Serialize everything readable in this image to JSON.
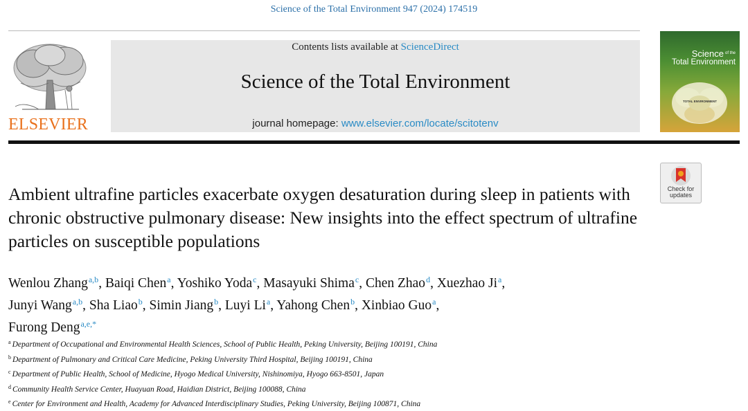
{
  "header": {
    "citation": "Science of the Total Environment 947 (2024) 174519",
    "contents_prefix": "Contents lists available at",
    "contents_link": "ScienceDirect",
    "journal_title": "Science of the Total Environment",
    "homepage_prefix": "journal homepage:",
    "homepage_link": "www.elsevier.com/locate/scitotenv",
    "publisher": "ELSEVIER"
  },
  "cover": {
    "title_line1": "Science",
    "title_sup": "of the",
    "title_line2": "Total Environment",
    "inner_label": "TOTAL ENVIRONMENT"
  },
  "check_updates": {
    "line1": "Check for",
    "line2": "updates"
  },
  "article": {
    "title": "Ambient ultrafine particles exacerbate oxygen desaturation during sleep in patients with chronic obstructive pulmonary disease: New insights into the effect spectrum of ultrafine particles on susceptible populations",
    "authors": [
      {
        "name": "Wenlou Zhang",
        "sup": "a,b",
        "sep": ", "
      },
      {
        "name": "Baiqi Chen",
        "sup": "a",
        "sep": ", "
      },
      {
        "name": "Yoshiko Yoda",
        "sup": "c",
        "sep": ", "
      },
      {
        "name": "Masayuki Shima",
        "sup": "c",
        "sep": ", "
      },
      {
        "name": "Chen Zhao",
        "sup": "d",
        "sep": ", "
      },
      {
        "name": "Xuezhao Ji",
        "sup": "a",
        "sep": ","
      },
      {
        "name": "Junyi Wang",
        "sup": "a,b",
        "sep": ", "
      },
      {
        "name": "Sha Liao",
        "sup": "b",
        "sep": ", "
      },
      {
        "name": "Simin Jiang",
        "sup": "b",
        "sep": ", "
      },
      {
        "name": "Luyi Li",
        "sup": "a",
        "sep": ", "
      },
      {
        "name": "Yahong Chen",
        "sup": "b",
        "sep": ", "
      },
      {
        "name": "Xinbiao Guo",
        "sup": "a",
        "sep": ","
      },
      {
        "name": "Furong Deng",
        "sup": "a,e,*",
        "sep": ""
      }
    ],
    "affiliations": [
      {
        "mark": "a",
        "text": "Department of Occupational and Environmental Health Sciences, School of Public Health, Peking University, Beijing 100191, China"
      },
      {
        "mark": "b",
        "text": "Department of Pulmonary and Critical Care Medicine, Peking University Third Hospital, Beijing 100191, China"
      },
      {
        "mark": "c",
        "text": "Department of Public Health, School of Medicine, Hyogo Medical University, Nishinomiya, Hyogo 663-8501, Japan"
      },
      {
        "mark": "d",
        "text": "Community Health Service Center, Huayuan Road, Haidian District, Beijing 100088, China"
      },
      {
        "mark": "e",
        "text": "Center for Environment and Health, Academy for Advanced Interdisciplinary Studies, Peking University, Beijing 100871, China"
      }
    ]
  }
}
